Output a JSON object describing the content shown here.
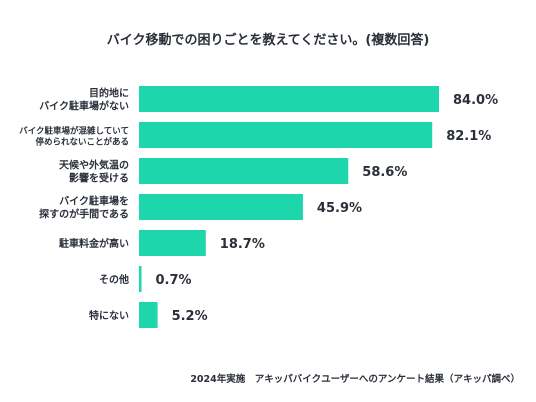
{
  "chart_data": {
    "type": "bar",
    "orientation": "horizontal",
    "title": "バイク移動での困りごとを教えてください。(複数回答)",
    "categories": [
      [
        "目的地に",
        "バイク駐車場がない"
      ],
      [
        "バイク駐車場が混雑していて",
        "停められないことがある"
      ],
      [
        "天候や外気温の",
        "影響を受ける"
      ],
      [
        "バイク駐車場を",
        "探すのが手間である"
      ],
      [
        "駐車料金が高い"
      ],
      [
        "その他"
      ],
      [
        "特にない"
      ]
    ],
    "values": [
      84.0,
      82.1,
      58.6,
      45.9,
      18.7,
      0.7,
      5.2
    ],
    "value_labels": [
      "84.0%",
      "82.1%",
      "58.6%",
      "45.9%",
      "18.7%",
      "0.7%",
      "5.2%"
    ],
    "bar_color": "#1ed6ab",
    "source_note": "2024年実施　アキッパバイクユーザーへのアンケート結果（アキッパ調べ）"
  }
}
